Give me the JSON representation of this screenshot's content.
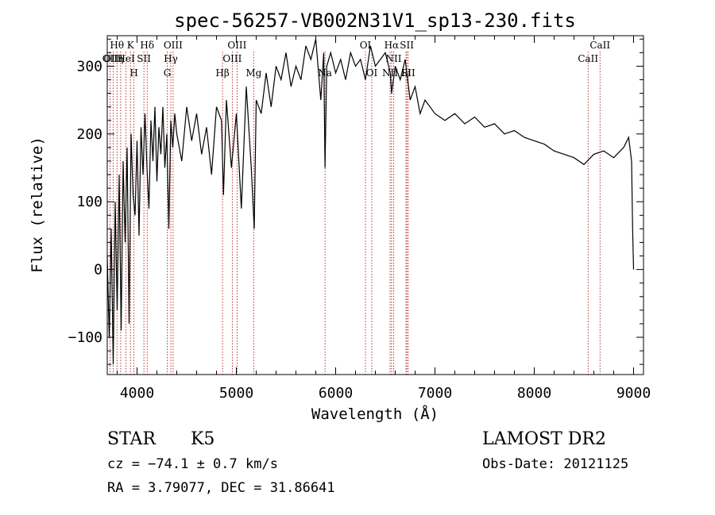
{
  "chart_data": {
    "type": "line",
    "title": "spec-56257-VB002N31V1_sp13-230.fits",
    "xlabel": "Wavelength (Å)",
    "ylabel": "Flux (relative)",
    "xlim": [
      3700,
      9100
    ],
    "ylim": [
      -155,
      345
    ],
    "x_ticks": [
      4000,
      5000,
      6000,
      7000,
      8000,
      9000
    ],
    "y_ticks": [
      -100,
      0,
      100,
      200,
      300
    ],
    "grid": false,
    "series": [
      {
        "x": [
          3700,
          3720,
          3740,
          3760,
          3780,
          3800,
          3820,
          3840,
          3860,
          3880,
          3900,
          3920,
          3940,
          3960,
          3980,
          4000,
          4020,
          4040,
          4060,
          4080,
          4100,
          4120,
          4140,
          4160,
          4180,
          4200,
          4220,
          4240,
          4260,
          4280,
          4300,
          4320,
          4340,
          4360,
          4380,
          4400,
          4450,
          4500,
          4550,
          4600,
          4650,
          4700,
          4750,
          4800,
          4850,
          4870,
          4900,
          4950,
          5000,
          5050,
          5100,
          5150,
          5180,
          5200,
          5250,
          5300,
          5350,
          5400,
          5450,
          5500,
          5550,
          5600,
          5650,
          5700,
          5750,
          5800,
          5850,
          5880,
          5893,
          5910,
          5950,
          6000,
          6050,
          6100,
          6150,
          6200,
          6250,
          6300,
          6350,
          6400,
          6450,
          6500,
          6550,
          6563,
          6600,
          6650,
          6700,
          6750,
          6800,
          6850,
          6900,
          6950,
          7000,
          7100,
          7200,
          7300,
          7400,
          7500,
          7600,
          7700,
          7800,
          7900,
          8000,
          8100,
          8200,
          8300,
          8400,
          8450,
          8500,
          8600,
          8700,
          8800,
          8900,
          8950,
          8980,
          8990,
          9000
        ],
        "y": [
          20,
          -100,
          60,
          -140,
          100,
          -60,
          140,
          -90,
          160,
          40,
          180,
          -80,
          200,
          110,
          80,
          190,
          50,
          210,
          140,
          230,
          150,
          90,
          220,
          160,
          240,
          130,
          210,
          170,
          240,
          150,
          200,
          60,
          220,
          180,
          230,
          200,
          160,
          240,
          190,
          230,
          170,
          210,
          140,
          240,
          220,
          110,
          250,
          150,
          230,
          90,
          270,
          150,
          60,
          250,
          230,
          290,
          240,
          300,
          280,
          320,
          270,
          300,
          280,
          330,
          310,
          340,
          250,
          320,
          150,
          300,
          320,
          290,
          310,
          280,
          320,
          300,
          310,
          280,
          330,
          300,
          310,
          320,
          290,
          260,
          300,
          280,
          310,
          250,
          270,
          230,
          250,
          240,
          230,
          220,
          230,
          215,
          225,
          210,
          215,
          200,
          205,
          195,
          190,
          185,
          175,
          170,
          165,
          160,
          155,
          170,
          175,
          165,
          180,
          195,
          160,
          60,
          0
        ]
      }
    ],
    "spectral_lines": [
      {
        "label": "Hθ",
        "x": 3798
      },
      {
        "label": "K",
        "x": 3934
      },
      {
        "label": "Hδ",
        "x": 4102
      },
      {
        "label": "OIII",
        "x": 4363
      },
      {
        "label": "OIII",
        "x": 5007
      },
      {
        "label": "OI",
        "x": 6300
      },
      {
        "label": "Hα",
        "x": 6563
      },
      {
        "label": "SII",
        "x": 6717
      },
      {
        "label": "CaII",
        "x": 8662
      },
      {
        "label": "OII",
        "x": 3727
      },
      {
        "label": "HeI",
        "x": 3889
      },
      {
        "label": "SII",
        "x": 4069
      },
      {
        "label": "Hγ",
        "x": 4340
      },
      {
        "label": "OIII",
        "x": 4959
      },
      {
        "label": "NII",
        "x": 6584
      },
      {
        "label": "CaII",
        "x": 8542
      },
      {
        "label": "OIII",
        "x": 3760
      },
      {
        "label": "η",
        "x": 3835
      },
      {
        "label": "H",
        "x": 3969
      },
      {
        "label": "G",
        "x": 4304
      },
      {
        "label": "Hβ",
        "x": 4861
      },
      {
        "label": "Mg",
        "x": 5175
      },
      {
        "label": "Na",
        "x": 5893
      },
      {
        "label": "OI",
        "x": 6364
      },
      {
        "label": "Li",
        "x": 6708
      },
      {
        "label": "SII",
        "x": 6731
      },
      {
        "label": "NII",
        "x": 6548
      }
    ]
  },
  "info": {
    "class_label": "STAR",
    "subclass": "K5",
    "survey": "LAMOST DR2",
    "cz": "cz = −74.1 ± 0.7 km/s",
    "obs_date": "Obs-Date: 20121125",
    "coords": "RA =   3.79077, DEC =  31.86641"
  }
}
